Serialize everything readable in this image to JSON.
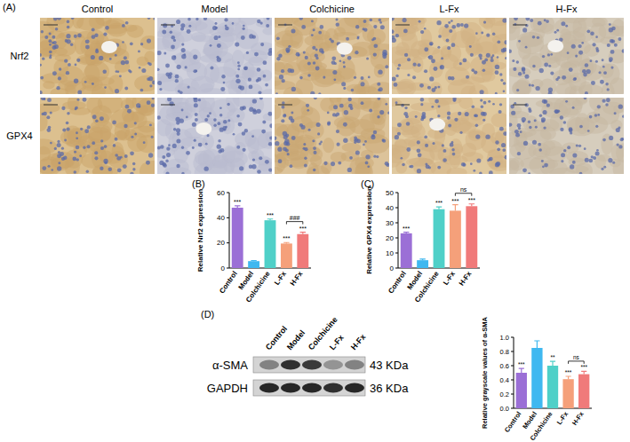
{
  "chart_data": [
    {
      "type": "bar",
      "panel": "(B)",
      "y_label": "Relative Nrf2 expression",
      "categories": [
        "Control",
        "Model",
        "Colchicine",
        "L-Fx",
        "H-Fx"
      ],
      "values": [
        48,
        5.5,
        38,
        19.5,
        27
      ],
      "errors": [
        1.5,
        0.5,
        1,
        0.8,
        1.5
      ],
      "colors": [
        "#9b6fd6",
        "#3fb8f0",
        "#4fd0c8",
        "#f5a07a",
        "#f07a7a"
      ],
      "significance": [
        "***",
        null,
        "***",
        "***",
        "***"
      ],
      "comparisons": [
        {
          "from": 3,
          "to": 4,
          "label": "###"
        }
      ],
      "ylim": [
        0,
        60
      ],
      "yticks": [
        0,
        20,
        40,
        60
      ]
    },
    {
      "type": "bar",
      "panel": "(C)",
      "y_label": "Relative GPX4 expression",
      "categories": [
        "Control",
        "Model",
        "Colchicine",
        "L-Fx",
        "H-Fx"
      ],
      "values": [
        23,
        5.2,
        39,
        38,
        41
      ],
      "errors": [
        0.8,
        0.8,
        1.5,
        4,
        1.5
      ],
      "colors": [
        "#9b6fd6",
        "#3fb8f0",
        "#4fd0c8",
        "#f5a07a",
        "#f07a7a"
      ],
      "significance": [
        "***",
        null,
        "***",
        "***",
        "***"
      ],
      "comparisons": [
        {
          "from": 3,
          "to": 4,
          "label": "ns"
        }
      ],
      "ylim": [
        0,
        50
      ],
      "yticks": [
        0,
        10,
        20,
        30,
        40,
        50
      ]
    },
    {
      "type": "bar",
      "y_label": "Relative grayscale values of α-SMA",
      "categories": [
        "Control",
        "Model",
        "Colchicine",
        "L-Fx",
        "H-Fx"
      ],
      "values": [
        0.5,
        0.85,
        0.6,
        0.41,
        0.48
      ],
      "errors": [
        0.06,
        0.1,
        0.06,
        0.04,
        0.04
      ],
      "colors": [
        "#9b6fd6",
        "#3fb8f0",
        "#4fd0c8",
        "#f5a07a",
        "#f07a7a"
      ],
      "significance": [
        "***",
        null,
        "**",
        "***",
        "***"
      ],
      "comparisons": [
        {
          "from": 3,
          "to": 4,
          "label": "ns"
        }
      ],
      "ylim": [
        0,
        1
      ],
      "yticks": [
        {
          "value": 0,
          "label": "0.0"
        },
        0.2,
        0.4,
        0.6,
        0.8,
        {
          "value": 1,
          "label": "1.0"
        }
      ]
    }
  ],
  "ihc_panel": {
    "panel": "(A)",
    "columns": [
      "Control",
      "Model",
      "Colchicine",
      "L-Fx",
      "H-Fx"
    ],
    "rows": [
      "Nrf2",
      "GPX4"
    ]
  },
  "western_blot": {
    "panel": "(D)",
    "lanes": [
      "Control",
      "Model",
      "Colchicine",
      "L-Fx",
      "H-Fx"
    ],
    "bands": [
      {
        "name": "α-SMA",
        "size": "43 KDa"
      },
      {
        "name": "GAPDH",
        "size": "36 KDa"
      }
    ]
  }
}
